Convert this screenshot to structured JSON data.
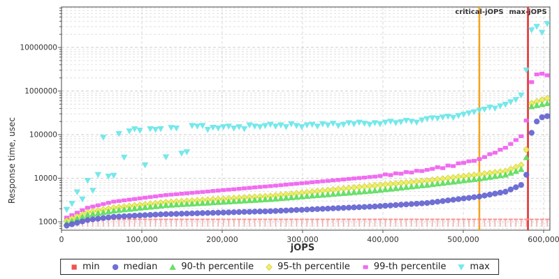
{
  "chart_data": {
    "type": "scatter",
    "title": "",
    "x_axis": {
      "label": "jOPS",
      "min": 0,
      "max": 608000,
      "ticks": [
        {
          "value": 0,
          "label": "0"
        },
        {
          "value": 100000,
          "label": "100,000"
        },
        {
          "value": 200000,
          "label": "200,000"
        },
        {
          "value": 300000,
          "label": "300,000"
        },
        {
          "value": 400000,
          "label": "400,000"
        },
        {
          "value": 500000,
          "label": "500,000"
        },
        {
          "value": 600000,
          "label": "600,000"
        }
      ]
    },
    "y_axis": {
      "label": "Response time, usec",
      "scale": "log",
      "min": 650,
      "max": 90000000,
      "ticks": [
        {
          "value": 1000,
          "label": "1000"
        },
        {
          "value": 10000,
          "label": "10000"
        },
        {
          "value": 100000,
          "label": "100000"
        },
        {
          "value": 1000000,
          "label": "1000000"
        },
        {
          "value": 10000000,
          "label": "10000000"
        }
      ]
    },
    "grid": true,
    "legend_position": "bottom",
    "annotations": [
      {
        "label": "critical-jOPS",
        "jops": 520000,
        "color": "#f2a41c"
      },
      {
        "label": "max-jOPS",
        "jops": 580500,
        "color": "#e83030"
      }
    ],
    "jops": [
      6500,
      13000,
      19500,
      26000,
      32500,
      39000,
      45500,
      52000,
      58500,
      65000,
      71500,
      78000,
      84500,
      91000,
      97500,
      104000,
      110500,
      117000,
      123500,
      130000,
      136500,
      143000,
      149500,
      156000,
      162500,
      169000,
      175500,
      182000,
      188500,
      195000,
      201500,
      208000,
      214500,
      221000,
      227500,
      234000,
      240500,
      247000,
      253500,
      260000,
      266500,
      273000,
      279500,
      286000,
      292500,
      299000,
      305500,
      312000,
      318500,
      325000,
      331500,
      338000,
      344500,
      351000,
      357500,
      364000,
      370500,
      377000,
      383500,
      390000,
      396500,
      403000,
      409500,
      416000,
      422500,
      429000,
      435500,
      442000,
      448500,
      455000,
      461500,
      468000,
      474500,
      481000,
      487500,
      494000,
      500500,
      507000,
      513500,
      520000,
      526500,
      533000,
      539500,
      546000,
      552500,
      559000,
      565500,
      572000,
      578500,
      585000,
      591500,
      598000,
      604500
    ],
    "series": [
      {
        "name": "min",
        "label": "min",
        "color": "#f25252",
        "marker": "tee",
        "marker_color": "#f59191",
        "values": [
          1100,
          1100,
          1100,
          1100,
          1100,
          1100,
          1100,
          1100,
          1100,
          1100,
          1100,
          1100,
          1100,
          1100,
          1100,
          1100,
          1100,
          1100,
          1100,
          1100,
          1100,
          1100,
          1100,
          1100,
          1100,
          1100,
          1100,
          1100,
          1100,
          1100,
          1100,
          1100,
          1100,
          1100,
          1100,
          1100,
          1100,
          1100,
          1100,
          1100,
          1100,
          1100,
          1100,
          1100,
          1100,
          1100,
          1100,
          1100,
          1100,
          1100,
          1100,
          1100,
          1100,
          1100,
          1100,
          1100,
          1100,
          1100,
          1100,
          1100,
          1100,
          1100,
          1100,
          1100,
          1100,
          1100,
          1100,
          1100,
          1100,
          1100,
          1100,
          1100,
          1100,
          1100,
          1100,
          1100,
          1100,
          1100,
          1100,
          1100,
          1100,
          1100,
          1100,
          1100,
          1100,
          1100,
          1100,
          1100,
          1100,
          1100,
          1100,
          1100,
          1100
        ]
      },
      {
        "name": "median",
        "label": "median",
        "color": "#6363d1",
        "marker": "circle",
        "values": [
          820,
          880,
          950,
          1020,
          1100,
          1140,
          1180,
          1220,
          1260,
          1300,
          1320,
          1340,
          1360,
          1380,
          1400,
          1420,
          1440,
          1460,
          1480,
          1500,
          1510,
          1520,
          1535,
          1545,
          1560,
          1570,
          1585,
          1595,
          1605,
          1620,
          1630,
          1645,
          1655,
          1670,
          1685,
          1695,
          1710,
          1725,
          1735,
          1750,
          1770,
          1795,
          1815,
          1840,
          1865,
          1885,
          1910,
          1935,
          1960,
          1985,
          2010,
          2035,
          2060,
          2085,
          2115,
          2140,
          2165,
          2195,
          2220,
          2250,
          2290,
          2335,
          2375,
          2420,
          2465,
          2510,
          2555,
          2600,
          2650,
          2700,
          2795,
          2890,
          2990,
          3095,
          3200,
          3315,
          3430,
          3545,
          3670,
          3800,
          4000,
          4210,
          4430,
          4660,
          4900,
          5520,
          6210,
          7000,
          12000,
          110000,
          200000,
          250000,
          265000
        ]
      },
      {
        "name": "p90",
        "label": "90-th percentile",
        "color": "#5cdd5c",
        "marker": "triangle-up",
        "values": [
          950,
          1055,
          1170,
          1300,
          1450,
          1515,
          1580,
          1650,
          1725,
          1800,
          1855,
          1905,
          1960,
          2020,
          2080,
          2140,
          2200,
          2265,
          2330,
          2400,
          2440,
          2480,
          2520,
          2560,
          2600,
          2640,
          2685,
          2725,
          2770,
          2815,
          2860,
          2905,
          2950,
          3000,
          3050,
          3100,
          3150,
          3200,
          3250,
          3300,
          3375,
          3455,
          3535,
          3615,
          3695,
          3780,
          3870,
          3960,
          4050,
          4140,
          4240,
          4335,
          4435,
          4535,
          4640,
          4750,
          4855,
          4970,
          5085,
          5200,
          5355,
          5520,
          5685,
          5860,
          6035,
          6215,
          6405,
          6600,
          6795,
          7000,
          7240,
          7490,
          7745,
          8010,
          8280,
          8565,
          8860,
          9160,
          9475,
          9800,
          10200,
          10625,
          11065,
          11520,
          12000,
          13200,
          14500,
          16000,
          30000,
          440000,
          470000,
          495000,
          520000
        ]
      },
      {
        "name": "p95",
        "label": "95-th percentile",
        "color": "#eded5e",
        "marker": "diamond",
        "values": [
          1050,
          1175,
          1315,
          1475,
          1650,
          1730,
          1815,
          1905,
          2000,
          2100,
          2160,
          2225,
          2290,
          2355,
          2425,
          2495,
          2570,
          2645,
          2720,
          2800,
          2845,
          2895,
          2940,
          2990,
          3040,
          3090,
          3145,
          3195,
          3250,
          3300,
          3355,
          3415,
          3470,
          3530,
          3585,
          3645,
          3705,
          3770,
          3830,
          3900,
          4010,
          4125,
          4240,
          4360,
          4480,
          4605,
          4735,
          4870,
          5005,
          5150,
          5295,
          5440,
          5595,
          5755,
          5915,
          6080,
          6250,
          6430,
          6610,
          6800,
          6980,
          7160,
          7345,
          7540,
          7735,
          7935,
          8145,
          8355,
          8575,
          8800,
          9090,
          9395,
          9705,
          10030,
          10360,
          10705,
          11060,
          11430,
          11805,
          12200,
          12630,
          13070,
          13530,
          14000,
          14500,
          16100,
          17900,
          20000,
          45000,
          520000,
          570000,
          625000,
          680000
        ]
      },
      {
        "name": "p99",
        "label": "99-th percentile",
        "color": "#ef5fef",
        "marker": "rect",
        "values": [
          1250,
          1420,
          1620,
          1845,
          2100,
          2240,
          2390,
          2550,
          2720,
          2900,
          3000,
          3110,
          3220,
          3335,
          3450,
          3575,
          3700,
          3830,
          3965,
          4100,
          4200,
          4300,
          4405,
          4510,
          4620,
          4730,
          4845,
          4960,
          5080,
          5200,
          5330,
          5455,
          5590,
          5720,
          5860,
          6000,
          6145,
          6295,
          6445,
          6600,
          6770,
          6940,
          7115,
          7295,
          7480,
          7670,
          7865,
          8065,
          8270,
          8480,
          8695,
          8920,
          9145,
          9375,
          9615,
          9860,
          10110,
          10365,
          10630,
          10900,
          11290,
          12200,
          11800,
          12900,
          12700,
          13800,
          13500,
          14800,
          14600,
          15500,
          16400,
          17800,
          17000,
          19500,
          19000,
          21875,
          22600,
          24535,
          25000,
          27500,
          30500,
          35500,
          38500,
          45000,
          50000,
          61000,
          75000,
          92000,
          210000,
          1600000,
          2400000,
          2500000,
          2300000
        ]
      },
      {
        "name": "max",
        "label": "max",
        "color": "#6ae6e9",
        "marker": "triangle-down",
        "values": [
          1900,
          2600,
          4800,
          3300,
          8800,
          5200,
          12000,
          86000,
          11000,
          11500,
          104000,
          30000,
          120000,
          134000,
          125000,
          20000,
          135000,
          130000,
          135000,
          30500,
          144000,
          140000,
          37000,
          40000,
          160000,
          155000,
          160000,
          130000,
          145000,
          140000,
          150000,
          155000,
          140000,
          150000,
          135000,
          165000,
          155000,
          150000,
          160000,
          170000,
          155000,
          165000,
          150000,
          175000,
          160000,
          150000,
          165000,
          170000,
          155000,
          175000,
          165000,
          180000,
          160000,
          170000,
          185000,
          175000,
          190000,
          180000,
          170000,
          185000,
          175000,
          190000,
          200000,
          185000,
          195000,
          210000,
          200000,
          190000,
          215000,
          230000,
          240000,
          235000,
          250000,
          260000,
          245000,
          270000,
          290000,
          310000,
          330000,
          360000,
          380000,
          420000,
          400000,
          450000,
          490000,
          560000,
          630000,
          800000,
          3000000,
          25000000,
          30000000,
          22000000,
          35000000
        ]
      }
    ]
  }
}
